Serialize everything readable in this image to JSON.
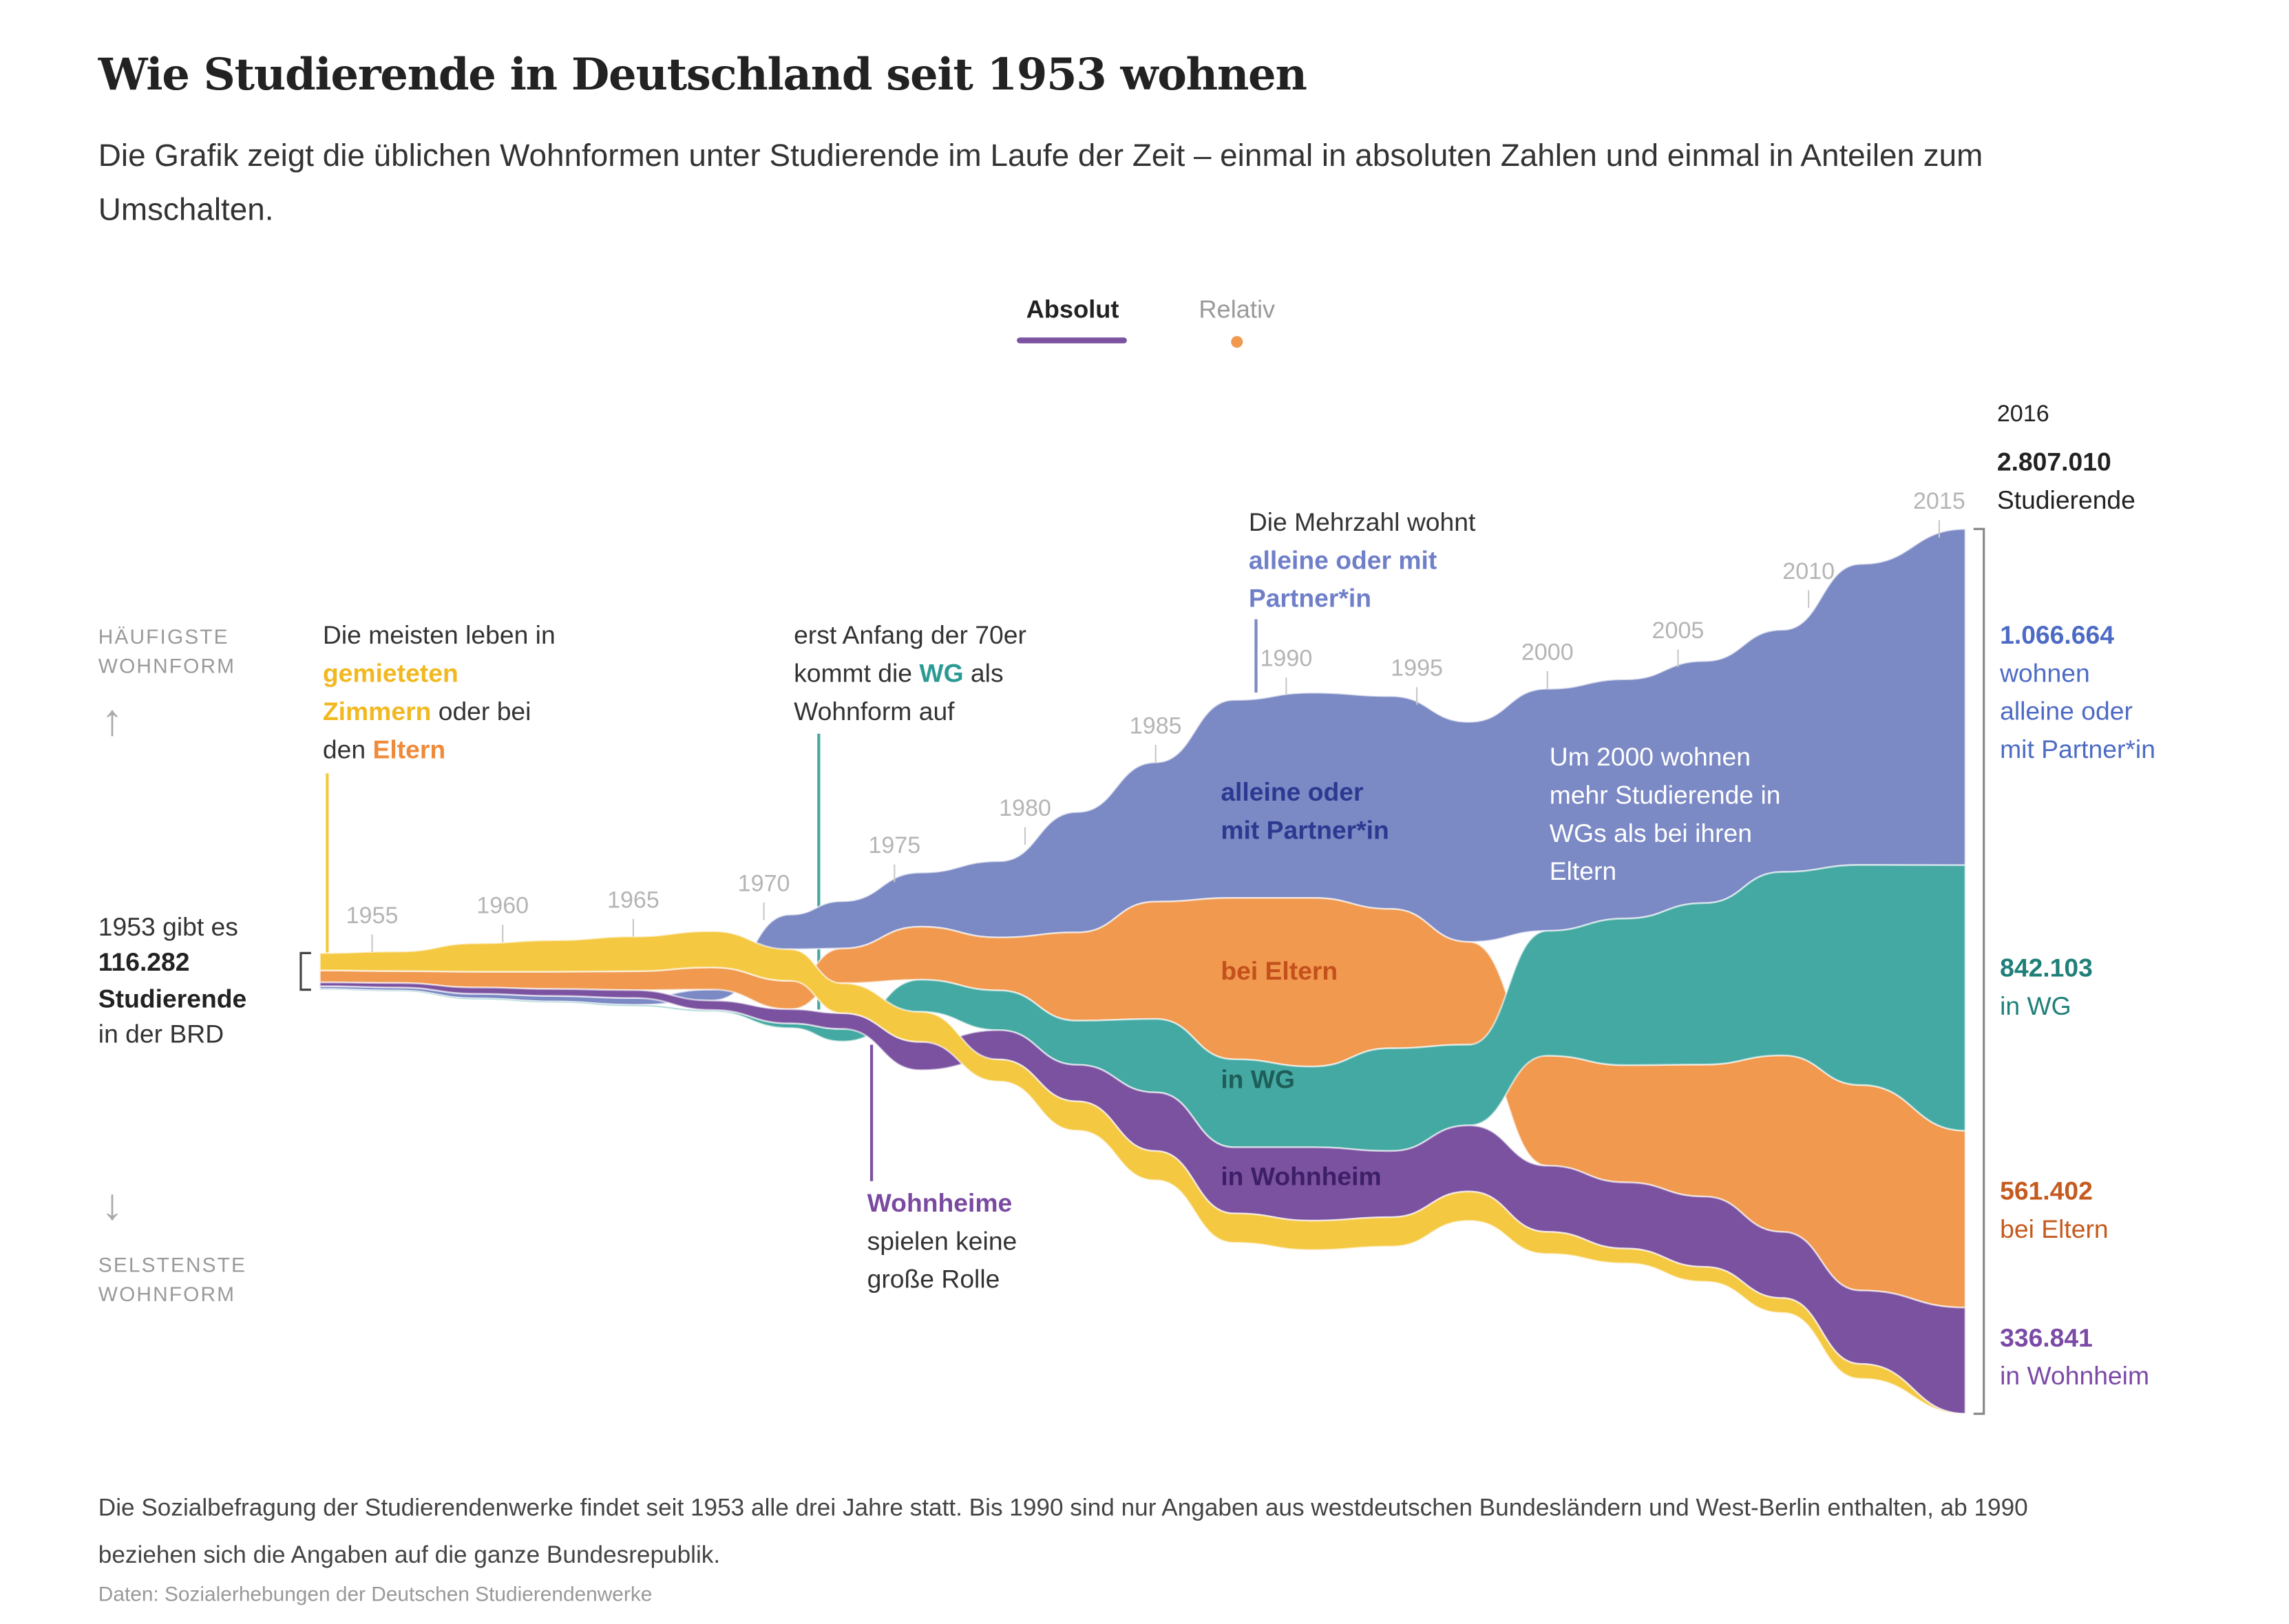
{
  "chart_data": {
    "type": "streamgraph",
    "title": "Wie Studierende in Deutschland seit 1953 wohnen",
    "subtitle": "Die Grafik zeigt die üblichen Wohnformen unter Studierende im Laufe der Zeit – einmal in absoluten Zahlen und einmal in Anteilen zum Umschalten.",
    "toggle": {
      "options": [
        "Absolut",
        "Relativ"
      ],
      "active_color": "#7b52a0",
      "inactive_color": "#f0994f"
    },
    "axis_top_label": [
      "HÄUFIGSTE",
      "WOHNFORM"
    ],
    "axis_bottom_label": [
      "SELSTENSTE",
      "WOHNFORM"
    ],
    "x": [
      1953,
      1956,
      1959,
      1962,
      1965,
      1968,
      1971,
      1973,
      1976,
      1979,
      1982,
      1985,
      1988,
      1991,
      1994,
      1997,
      2000,
      2003,
      2006,
      2009,
      2012,
      2016
    ],
    "xlim": [
      1953,
      2016
    ],
    "xticks": [
      1955,
      1960,
      1965,
      1970,
      1975,
      1980,
      1985,
      1990,
      1995,
      2000,
      2005,
      2010,
      2015
    ],
    "series": [
      {
        "name_lines": [
          "alleine oder",
          "mit Partner*in"
        ],
        "color": "#7b89c4",
        "label_color": "#2b3990",
        "end_color": "#4d6bc4",
        "end_lines": [
          "wohnen",
          "alleine oder",
          "mit Partner*in"
        ],
        "values": [
          9282,
          10000,
          15000,
          18000,
          22000,
          35000,
          110000,
          150000,
          172000,
          242000,
          382000,
          442000,
          628000,
          651000,
          675000,
          698000,
          768000,
          759000,
          768000,
          768000,
          955000,
          1066664
        ],
        "value_labels": [
          null,
          null,
          null,
          null,
          null,
          null,
          null,
          null,
          null,
          null,
          null,
          null,
          null,
          null,
          null,
          null,
          null,
          null,
          null,
          null,
          null,
          "1.066.664"
        ]
      },
      {
        "name_lines": [
          "bei Eltern"
        ],
        "color": "#f0994f",
        "label_color": "#c4501c",
        "end_color": "#c55a1e",
        "end_lines": [
          "bei Eltern"
        ],
        "values": [
          38000,
          38000,
          50000,
          55000,
          60000,
          70000,
          90000,
          110000,
          168000,
          168000,
          280000,
          372000,
          512000,
          535000,
          442000,
          326000,
          349000,
          372000,
          419000,
          560000,
          652000,
          561402
        ],
        "value_labels": [
          null,
          null,
          null,
          null,
          null,
          null,
          null,
          null,
          null,
          null,
          null,
          null,
          null,
          null,
          null,
          null,
          null,
          null,
          null,
          null,
          null,
          "561.402"
        ]
      },
      {
        "name_lines": [
          "in WG"
        ],
        "color": "#45a9a3",
        "label_color": "#1e5e5a",
        "end_color": "#1f7f79",
        "end_lines": [
          "in WG"
        ],
        "values": [
          2000,
          2000,
          3000,
          3000,
          4000,
          5000,
          15000,
          40000,
          102000,
          126000,
          140000,
          233000,
          279000,
          256000,
          326000,
          256000,
          396000,
          465000,
          512000,
          582000,
          698000,
          842103
        ],
        "value_labels": [
          null,
          null,
          null,
          null,
          null,
          null,
          null,
          null,
          null,
          null,
          null,
          null,
          null,
          null,
          null,
          null,
          null,
          null,
          null,
          null,
          null,
          "842.103"
        ]
      },
      {
        "name_lines": [
          "in Wohnheim"
        ],
        "color": "#7b52a0",
        "label_color": "#3d1f66",
        "end_color": "#7b4aa6",
        "end_lines": [
          "in Wohnheim"
        ],
        "values": [
          12000,
          14000,
          20000,
          22000,
          25000,
          30000,
          45000,
          50000,
          90000,
          93000,
          116000,
          186000,
          210000,
          233000,
          210000,
          210000,
          210000,
          210000,
          223000,
          210000,
          233000,
          336841
        ],
        "value_labels": [
          null,
          null,
          null,
          null,
          null,
          null,
          null,
          null,
          null,
          null,
          null,
          null,
          null,
          null,
          null,
          null,
          null,
          null,
          null,
          null,
          null,
          "336.841"
        ]
      },
      {
        "color": "#f5c842",
        "values": [
          55000,
          62000,
          90000,
          100000,
          110000,
          115000,
          100000,
          95000,
          95000,
          70000,
          93000,
          93000,
          93000,
          93000,
          93000,
          93000,
          70000,
          47000,
          47000,
          47000,
          47000,
          0
        ]
      }
    ],
    "start": {
      "intro": "1953 gibt es",
      "value": 116282,
      "label": "116.282",
      "unit": "Studierende",
      "place": "in der BRD"
    },
    "end": {
      "year": 2016,
      "value": 2807010,
      "label": "2.807.010",
      "unit": "Studierende"
    },
    "annotations": [
      {
        "lines": [
          [
            {
              "text": "Die meisten leben in"
            }
          ],
          [
            {
              "text": "gemieteten",
              "color": "#f2b820",
              "bold": true
            }
          ],
          [
            {
              "text": "Zimmern",
              "color": "#f2b820",
              "bold": true
            },
            {
              "text": " oder bei"
            }
          ],
          [
            {
              "text": "den "
            },
            {
              "text": "Eltern",
              "color": "#ef8a3a",
              "bold": true
            }
          ]
        ]
      },
      {
        "lines": [
          [
            {
              "text": "erst Anfang der 70er"
            }
          ],
          [
            {
              "text": "kommt die "
            },
            {
              "text": "WG",
              "color": "#2b9a94",
              "bold": true
            },
            {
              "text": " als"
            }
          ],
          [
            {
              "text": "Wohnform auf"
            }
          ]
        ]
      },
      {
        "lines": [
          [
            {
              "text": "Die Mehrzahl wohnt"
            }
          ],
          [
            {
              "text": "alleine oder mit",
              "color": "#6f7fc8",
              "bold": true
            }
          ],
          [
            {
              "text": "Partner*in",
              "color": "#6f7fc8",
              "bold": true
            }
          ]
        ]
      },
      {
        "lines": [
          [
            {
              "text": "Wohnheime",
              "color": "#7a4aa0",
              "bold": true
            }
          ],
          [
            {
              "text": "spielen keine"
            }
          ],
          [
            {
              "text": "große Rolle"
            }
          ]
        ]
      },
      {
        "lines": [
          [
            {
              "text": "Um 2000 wohnen",
              "color": "#ffffff"
            }
          ],
          [
            {
              "text": "mehr Studierende in",
              "color": "#ffffff"
            }
          ],
          [
            {
              "text": "WGs als bei ihren",
              "color": "#ffffff"
            }
          ],
          [
            {
              "text": "Eltern",
              "color": "#ffffff"
            }
          ]
        ]
      }
    ],
    "note": "Die Sozialbefragung der Studierendenwerke findet seit 1953 alle drei Jahre statt. Bis 1990 sind nur Angaben aus westdeutschen Bundesländern und West-Berlin enthalten, ab 1990 beziehen sich die Angaben auf die ganze Bundesrepublik.",
    "source": "Daten: Sozialerhebungen der Deutschen Studierendenwerke"
  }
}
